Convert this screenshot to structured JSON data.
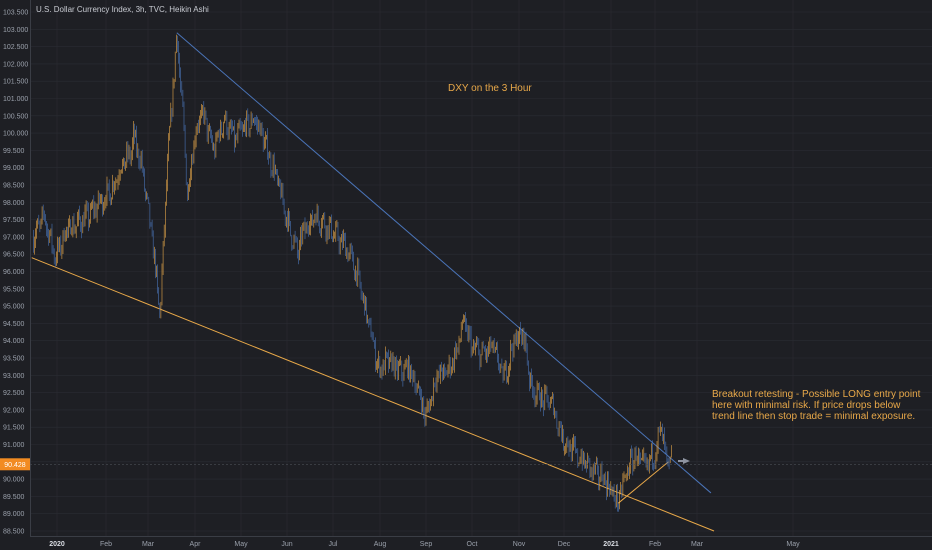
{
  "chart_title": "U.S. Dollar Currency Index, 3h, TVC, Heikin Ashi",
  "annotations": {
    "main": "DXY on the 3 Hour",
    "breakout": "Breakout retesting - Possible LONG entry point here with minimal risk.  If price drops below trend line then stop trade = minimal exposure."
  },
  "colors": {
    "background": "#1e1f24",
    "up_candle": "#e8a849",
    "down_candle": "#4a74b8",
    "trendline_upper": "#4a74b8",
    "trendline_lower": "#e8a849",
    "price_badge": "#f28b22",
    "grid": "#2a2c33"
  },
  "chart_data": {
    "type": "candlestick",
    "style": "heikin-ashi",
    "symbol": "DXY",
    "timeframe": "3h",
    "ylim": [
      88.5,
      103.5
    ],
    "y_ticks": [
      "88.500",
      "89.000",
      "89.500",
      "90.000",
      "90.500",
      "91.000",
      "91.500",
      "92.000",
      "92.500",
      "93.000",
      "93.500",
      "94.000",
      "94.500",
      "95.000",
      "95.500",
      "96.000",
      "96.500",
      "97.000",
      "97.500",
      "98.000",
      "98.500",
      "99.000",
      "99.500",
      "100.000",
      "100.500",
      "101.000",
      "101.500",
      "102.000",
      "102.500",
      "103.000",
      "103.500"
    ],
    "x_ticks": [
      {
        "label": "2020",
        "bold": true
      },
      {
        "label": "Feb",
        "bold": false
      },
      {
        "label": "Mar",
        "bold": false
      },
      {
        "label": "Apr",
        "bold": false
      },
      {
        "label": "May",
        "bold": false
      },
      {
        "label": "Jun",
        "bold": false
      },
      {
        "label": "Jul",
        "bold": false
      },
      {
        "label": "Aug",
        "bold": false
      },
      {
        "label": "Sep",
        "bold": false
      },
      {
        "label": "Oct",
        "bold": false
      },
      {
        "label": "Nov",
        "bold": false
      },
      {
        "label": "Dec",
        "bold": false
      },
      {
        "label": "2021",
        "bold": true
      },
      {
        "label": "Feb",
        "bold": false
      },
      {
        "label": "Mar",
        "bold": false
      },
      {
        "label": "May",
        "bold": false
      }
    ],
    "last_price": "90.428",
    "price_path": [
      [
        "2019-12-17",
        97.0
      ],
      [
        "2019-12-24",
        97.6
      ],
      [
        "2019-12-31",
        96.4
      ],
      [
        "2020-01-07",
        97.2
      ],
      [
        "2020-01-14",
        97.4
      ],
      [
        "2020-01-21",
        97.6
      ],
      [
        "2020-01-28",
        98.0
      ],
      [
        "2020-02-04",
        98.3
      ],
      [
        "2020-02-11",
        99.0
      ],
      [
        "2020-02-18",
        99.4
      ],
      [
        "2020-02-20",
        99.9
      ],
      [
        "2020-02-25",
        99.2
      ],
      [
        "2020-03-03",
        97.2
      ],
      [
        "2020-03-06",
        96.0
      ],
      [
        "2020-03-09",
        94.7
      ],
      [
        "2020-03-13",
        98.5
      ],
      [
        "2020-03-17",
        101.0
      ],
      [
        "2020-03-20",
        102.9
      ],
      [
        "2020-03-24",
        100.5
      ],
      [
        "2020-03-27",
        98.2
      ],
      [
        "2020-04-01",
        100.0
      ],
      [
        "2020-04-06",
        100.6
      ],
      [
        "2020-04-13",
        99.5
      ],
      [
        "2020-04-20",
        100.4
      ],
      [
        "2020-04-27",
        99.8
      ],
      [
        "2020-05-04",
        100.2
      ],
      [
        "2020-05-11",
        100.4
      ],
      [
        "2020-05-18",
        99.6
      ],
      [
        "2020-05-25",
        98.7
      ],
      [
        "2020-06-01",
        97.5
      ],
      [
        "2020-06-08",
        96.5
      ],
      [
        "2020-06-12",
        97.2
      ],
      [
        "2020-06-19",
        97.6
      ],
      [
        "2020-06-26",
        97.4
      ],
      [
        "2020-07-03",
        97.0
      ],
      [
        "2020-07-10",
        96.7
      ],
      [
        "2020-07-17",
        95.9
      ],
      [
        "2020-07-24",
        94.6
      ],
      [
        "2020-07-31",
        93.2
      ],
      [
        "2020-08-07",
        93.4
      ],
      [
        "2020-08-14",
        93.1
      ],
      [
        "2020-08-21",
        93.2
      ],
      [
        "2020-08-28",
        92.4
      ],
      [
        "2020-09-01",
        91.8
      ],
      [
        "2020-09-08",
        93.0
      ],
      [
        "2020-09-15",
        93.1
      ],
      [
        "2020-09-22",
        93.8
      ],
      [
        "2020-09-25",
        94.6
      ],
      [
        "2020-10-01",
        93.8
      ],
      [
        "2020-10-08",
        93.6
      ],
      [
        "2020-10-15",
        93.8
      ],
      [
        "2020-10-22",
        92.9
      ],
      [
        "2020-10-29",
        94.0
      ],
      [
        "2020-11-04",
        94.2
      ],
      [
        "2020-11-09",
        92.7
      ],
      [
        "2020-11-16",
        92.3
      ],
      [
        "2020-11-23",
        92.2
      ],
      [
        "2020-11-30",
        91.2
      ],
      [
        "2020-12-07",
        90.8
      ],
      [
        "2020-12-14",
        90.5
      ],
      [
        "2020-12-21",
        90.2
      ],
      [
        "2020-12-28",
        90.0
      ],
      [
        "2021-01-06",
        89.3
      ],
      [
        "2021-01-12",
        90.2
      ],
      [
        "2021-01-18",
        90.7
      ],
      [
        "2021-01-25",
        90.3
      ],
      [
        "2021-02-01",
        90.8
      ],
      [
        "2021-02-05",
        91.5
      ],
      [
        "2021-02-09",
        90.4
      ],
      [
        "2021-02-12",
        90.5
      ]
    ],
    "trendlines": [
      {
        "name": "upper-resistance",
        "from": [
          "2020-03-20",
          102.9
        ],
        "to": [
          "2021-03-10",
          89.6
        ]
      },
      {
        "name": "lower-support",
        "from": [
          "2019-12-16",
          96.4
        ],
        "to": [
          "2021-03-12",
          88.5
        ]
      },
      {
        "name": "short-support",
        "from": [
          "2021-01-06",
          89.3
        ],
        "to": [
          "2021-02-10",
          90.5
        ]
      }
    ]
  }
}
